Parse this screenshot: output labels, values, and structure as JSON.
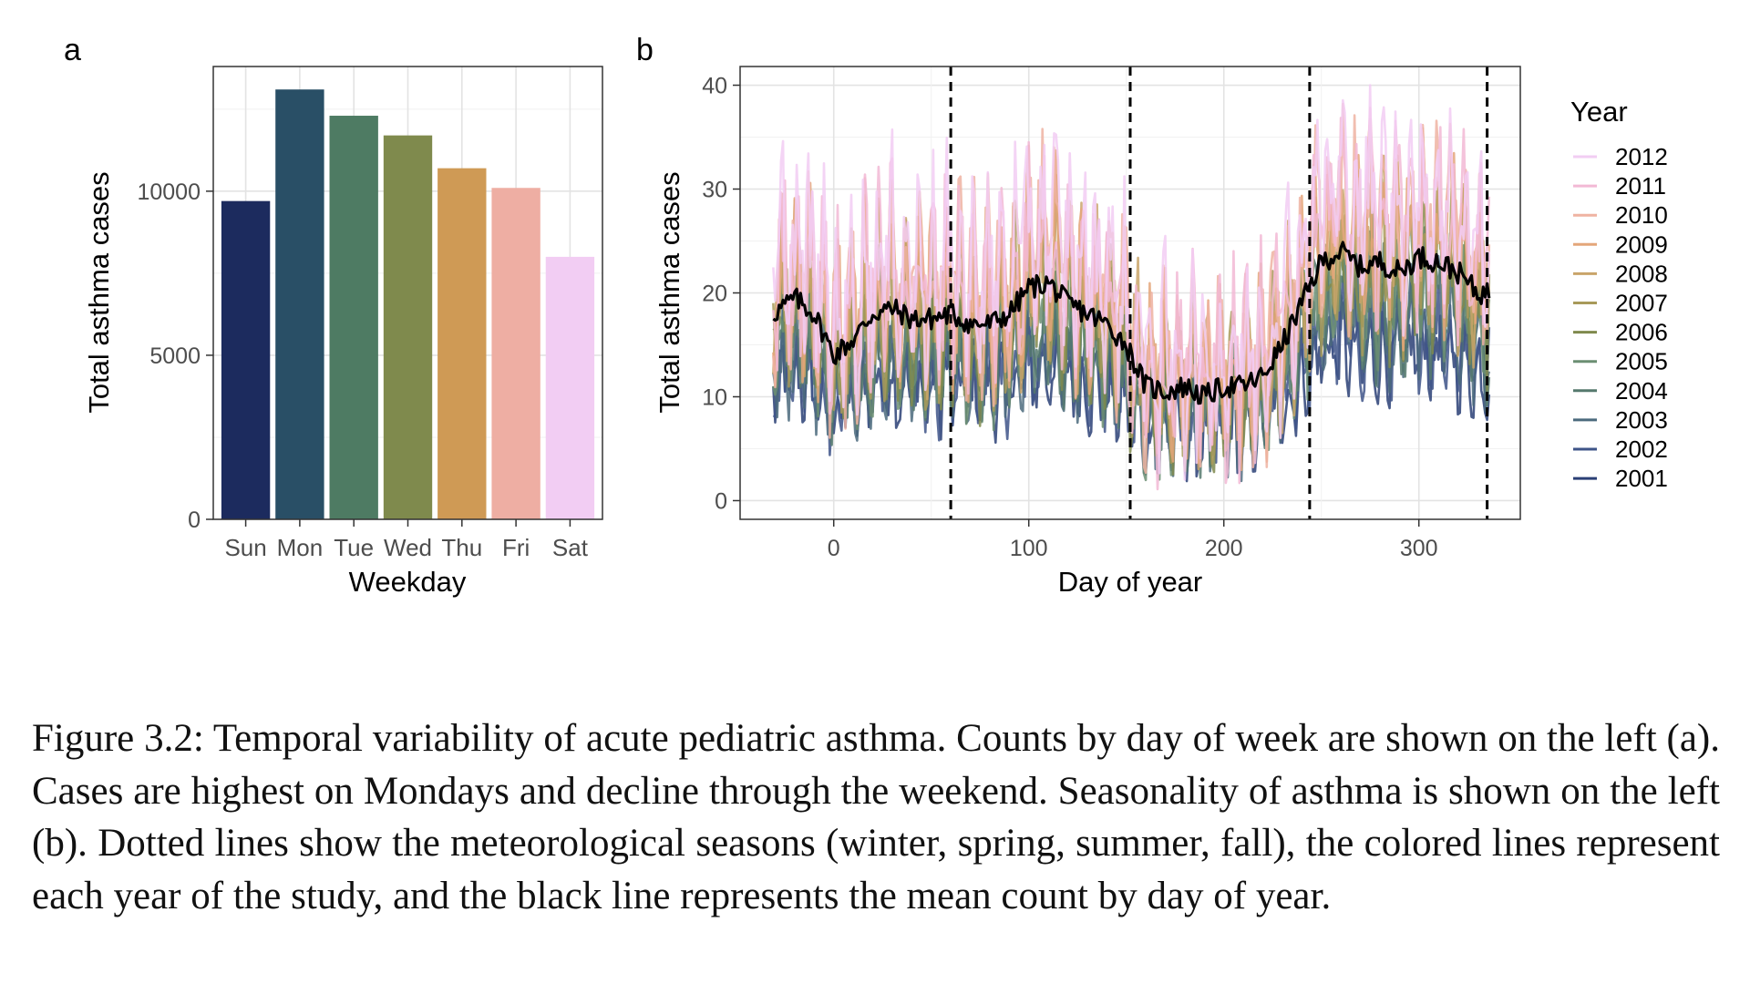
{
  "chart_data": [
    {
      "type": "bar",
      "panel_label": "a",
      "categories": [
        "Sun",
        "Mon",
        "Tue",
        "Wed",
        "Thu",
        "Fri",
        "Sat"
      ],
      "values": [
        9700,
        13100,
        12300,
        11700,
        10700,
        10100,
        8000
      ],
      "colors": [
        "#1c2b5e",
        "#294f66",
        "#4e7b63",
        "#7f8a4d",
        "#cf9a55",
        "#eeaea3",
        "#f2cdf3"
      ],
      "xlabel": "Weekday",
      "ylabel": "Total asthma cases",
      "yticks": [
        0,
        5000,
        10000
      ],
      "ylim": [
        0,
        13800
      ],
      "grid": true
    },
    {
      "type": "line",
      "panel_label": "b",
      "xlabel": "Day of year",
      "ylabel": "Total asthma cases",
      "xticks": [
        0,
        100,
        200,
        300
      ],
      "yticks": [
        0,
        10,
        20,
        30,
        40
      ],
      "xlim": [
        -48,
        352
      ],
      "ylim": [
        -1.8,
        41.8
      ],
      "legend_title": "Year",
      "legend_position": "right",
      "season_boundaries": [
        60,
        152,
        244,
        335
      ],
      "series": [
        {
          "name": "2012",
          "color": "#f2cdf3",
          "level": 19.5,
          "amp": 9.0
        },
        {
          "name": "2011",
          "color": "#f2b9d5",
          "level": 18.5,
          "amp": 8.5
        },
        {
          "name": "2010",
          "color": "#efb3a2",
          "level": 18.0,
          "amp": 8.5
        },
        {
          "name": "2009",
          "color": "#e4a67a",
          "level": 17.5,
          "amp": 8.0
        },
        {
          "name": "2008",
          "color": "#c9a46a",
          "level": 16.5,
          "amp": 7.5
        },
        {
          "name": "2007",
          "color": "#a89a5a",
          "level": 15.5,
          "amp": 7.0
        },
        {
          "name": "2006",
          "color": "#7f8a4d",
          "level": 14.5,
          "amp": 6.5
        },
        {
          "name": "2005",
          "color": "#6b8e72",
          "level": 13.5,
          "amp": 6.0
        },
        {
          "name": "2004",
          "color": "#55796d",
          "level": 12.5,
          "amp": 5.5
        },
        {
          "name": "2003",
          "color": "#4b6a7d",
          "level": 11.5,
          "amp": 5.0
        },
        {
          "name": "2002",
          "color": "#3e5488",
          "level": 10.5,
          "amp": 4.5
        },
        {
          "name": "2001",
          "color": "#2a3f75",
          "level": 9.5,
          "amp": 4.0
        }
      ],
      "mean": {
        "color": "#000000",
        "x": [
          -31,
          -20,
          -10,
          0,
          10,
          20,
          30,
          40,
          50,
          60,
          70,
          80,
          90,
          100,
          110,
          120,
          130,
          140,
          150,
          160,
          170,
          180,
          190,
          200,
          210,
          220,
          230,
          240,
          250,
          260,
          270,
          280,
          290,
          300,
          310,
          320,
          330,
          336
        ],
        "y": [
          18,
          19.5,
          18,
          14,
          15.5,
          18,
          18.5,
          17.5,
          17.5,
          18,
          17,
          17,
          18,
          20.5,
          21,
          19,
          18,
          17,
          15,
          11,
          10.5,
          11,
          10,
          11,
          11,
          12,
          15,
          19,
          23,
          24,
          22.5,
          23,
          22,
          23.5,
          23,
          22,
          20,
          20
        ]
      }
    }
  ],
  "caption": "Figure 3.2: Temporal variability of acute pediatric asthma. Counts by day of week are shown on the left (a). Cases are highest on Mondays and decline through the weekend. Seasonality of asthma is shown on the left (b). Dotted lines show the meteorological seasons (winter, spring, summer, fall), the colored lines represent each year of the study, and the black line represents the mean count by day of year."
}
